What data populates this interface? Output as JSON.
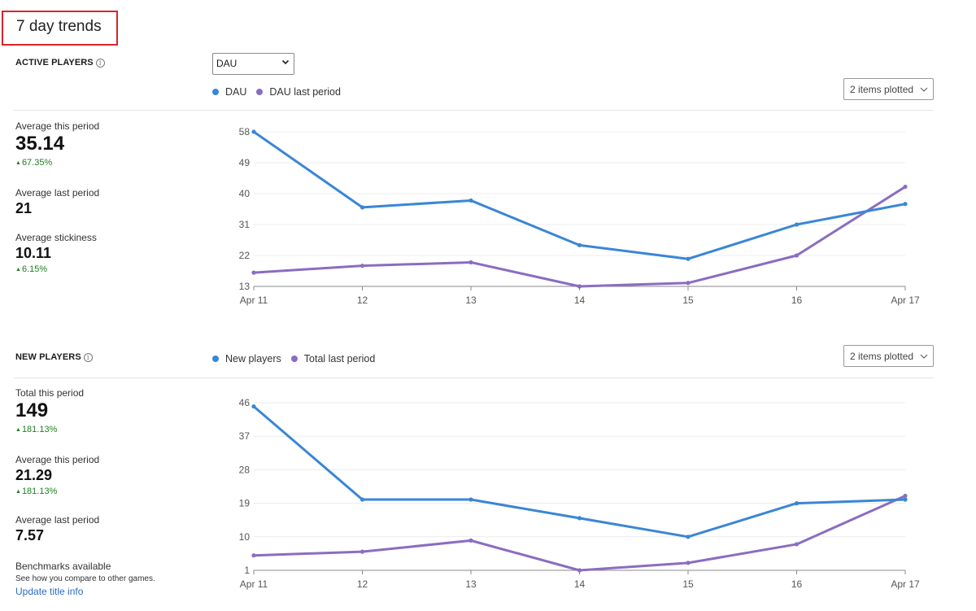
{
  "page": {
    "title": "7 day trends"
  },
  "active_players": {
    "label": "ACTIVE PLAYERS",
    "select_value": "DAU",
    "legend": [
      {
        "label": "DAU",
        "color": "#3a86d6"
      },
      {
        "label": "DAU last period",
        "color": "#8b6cc1"
      }
    ],
    "items_plotted": "2 items plotted",
    "stats": {
      "avg_this_label": "Average this period",
      "avg_this_value": "35.14",
      "avg_this_change": "67.35%",
      "avg_last_label": "Average last period",
      "avg_last_value": "21",
      "stickiness_label": "Average stickiness",
      "stickiness_value": "10.11",
      "stickiness_change": "6.15%"
    }
  },
  "new_players": {
    "label": "NEW PLAYERS",
    "legend": [
      {
        "label": "New players",
        "color": "#3a86d6"
      },
      {
        "label": "Total last period",
        "color": "#8b6cc1"
      }
    ],
    "items_plotted": "2 items plotted",
    "stats": {
      "total_this_label": "Total this period",
      "total_this_value": "149",
      "total_this_change": "181.13%",
      "avg_this_label": "Average this period",
      "avg_this_value": "21.29",
      "avg_this_change": "181.13%",
      "avg_last_label": "Average last period",
      "avg_last_value": "7.57"
    },
    "benchmarks": {
      "title": "Benchmarks available",
      "desc": "See how you compare to other games.",
      "link": "Update title info"
    }
  },
  "chart_data": [
    {
      "type": "line",
      "categories": [
        "Apr 11",
        "12",
        "13",
        "14",
        "15",
        "16",
        "Apr 17"
      ],
      "yticks": [
        13,
        22,
        31,
        40,
        49,
        58
      ],
      "ylim": [
        13,
        58
      ],
      "grid": true,
      "legend_position": "top-left",
      "series": [
        {
          "name": "DAU",
          "color": "#3a86d6",
          "values": [
            58,
            36,
            38,
            25,
            21,
            31,
            37
          ]
        },
        {
          "name": "DAU last period",
          "color": "#8b6cc1",
          "values": [
            17,
            19,
            20,
            13,
            14,
            22,
            42
          ]
        }
      ]
    },
    {
      "type": "line",
      "categories": [
        "Apr 11",
        "12",
        "13",
        "14",
        "15",
        "16",
        "Apr 17"
      ],
      "yticks": [
        1,
        10,
        19,
        28,
        37,
        46
      ],
      "ylim": [
        1,
        46
      ],
      "grid": true,
      "legend_position": "top-left",
      "series": [
        {
          "name": "New players",
          "color": "#3a86d6",
          "values": [
            45,
            20,
            20,
            15,
            10,
            19,
            20
          ]
        },
        {
          "name": "Total last period",
          "color": "#8b6cc1",
          "values": [
            5,
            6,
            9,
            1,
            3,
            8,
            21
          ]
        }
      ]
    }
  ]
}
